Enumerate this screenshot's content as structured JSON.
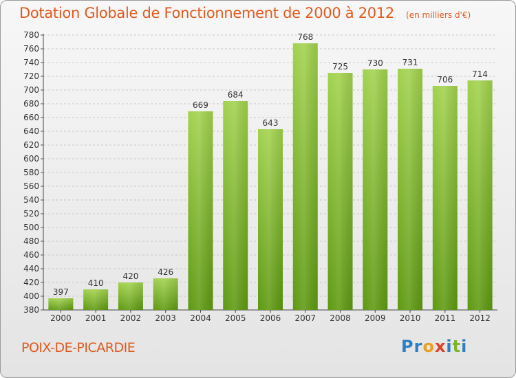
{
  "header": {
    "title": "Dotation Globale de Fonctionnement de 2000 à 2012",
    "unit_note": "(en milliers d'€)"
  },
  "footer": {
    "commune": "POIX-DE-PICARDIE",
    "logo_letters": [
      "P",
      "r",
      "o",
      "x",
      "i",
      "t",
      "i"
    ],
    "logo_colors": [
      "#2e7fc1",
      "#2e7fc1",
      "#e8a020",
      "#e0402a",
      "#2e7fc1",
      "#7ab52a",
      "#2e7fc1"
    ]
  },
  "colors": {
    "title": "#e05a1e",
    "bar_top": "#9fd04a",
    "bar_bottom": "#5f9a12"
  },
  "chart_data": {
    "type": "bar",
    "title": "Dotation Globale de Fonctionnement de 2000 à 2012",
    "subtitle": "(en milliers d'€)",
    "categories": [
      "2000",
      "2001",
      "2002",
      "2003",
      "2004",
      "2005",
      "2006",
      "2007",
      "2008",
      "2009",
      "2010",
      "2011",
      "2012"
    ],
    "values": [
      397,
      410,
      420,
      426,
      669,
      684,
      643,
      768,
      725,
      730,
      731,
      706,
      714
    ],
    "ylim": [
      380,
      780
    ],
    "ytick_step": 20,
    "grid": true,
    "xlabel": "",
    "ylabel": ""
  }
}
